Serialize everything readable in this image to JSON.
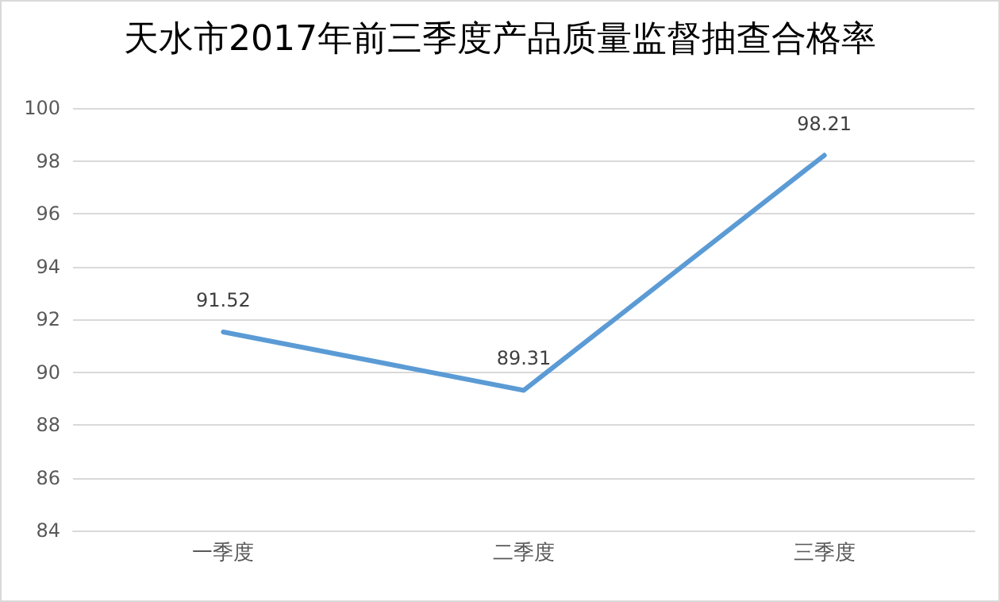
{
  "chart_data": {
    "type": "line",
    "title": "天水市2017年前三季度产品质量监督抽查合格率",
    "categories": [
      "一季度",
      "二季度",
      "三季度"
    ],
    "series": [
      {
        "color": "#5b9bd5",
        "values": [
          91.52,
          89.31,
          98.21
        ]
      }
    ],
    "ylim": [
      84,
      100
    ],
    "yticks": [
      84,
      86,
      88,
      90,
      92,
      94,
      96,
      98,
      100
    ],
    "grid": "y",
    "data_labels": true,
    "marker": "none"
  }
}
